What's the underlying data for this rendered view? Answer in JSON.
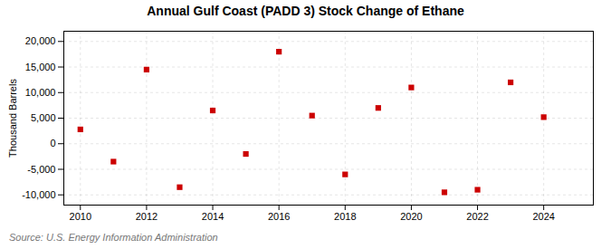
{
  "chart_data": {
    "type": "scatter",
    "title": "Annual Gulf Coast (PADD 3) Stock Change of Ethane",
    "ylabel": "Thousand Barrels",
    "source": "Source: U.S. Energy Information Administration",
    "x": [
      2010,
      2011,
      2012,
      2013,
      2014,
      2015,
      2016,
      2017,
      2018,
      2019,
      2020,
      2021,
      2022,
      2023,
      2024
    ],
    "values": [
      2800,
      -3500,
      14500,
      -8500,
      6500,
      -2000,
      18000,
      5500,
      -6000,
      7000,
      11000,
      -9500,
      -9000,
      12000,
      5200
    ],
    "color": "#cc0000",
    "marker": "square",
    "xlim": [
      2009.5,
      2025.5
    ],
    "xticks": [
      2010,
      2012,
      2014,
      2016,
      2018,
      2020,
      2022,
      2024
    ],
    "ylim": [
      -12000,
      22000
    ],
    "yticks": [
      {
        "value": -10000,
        "label": "-10,000"
      },
      {
        "value": -5000,
        "label": "-5,000"
      },
      0,
      {
        "value": 5000,
        "label": "5,000"
      },
      {
        "value": 10000,
        "label": "10,000"
      },
      {
        "value": 15000,
        "label": "15,000"
      },
      {
        "value": 20000,
        "label": "20,000"
      }
    ],
    "grid": true
  }
}
